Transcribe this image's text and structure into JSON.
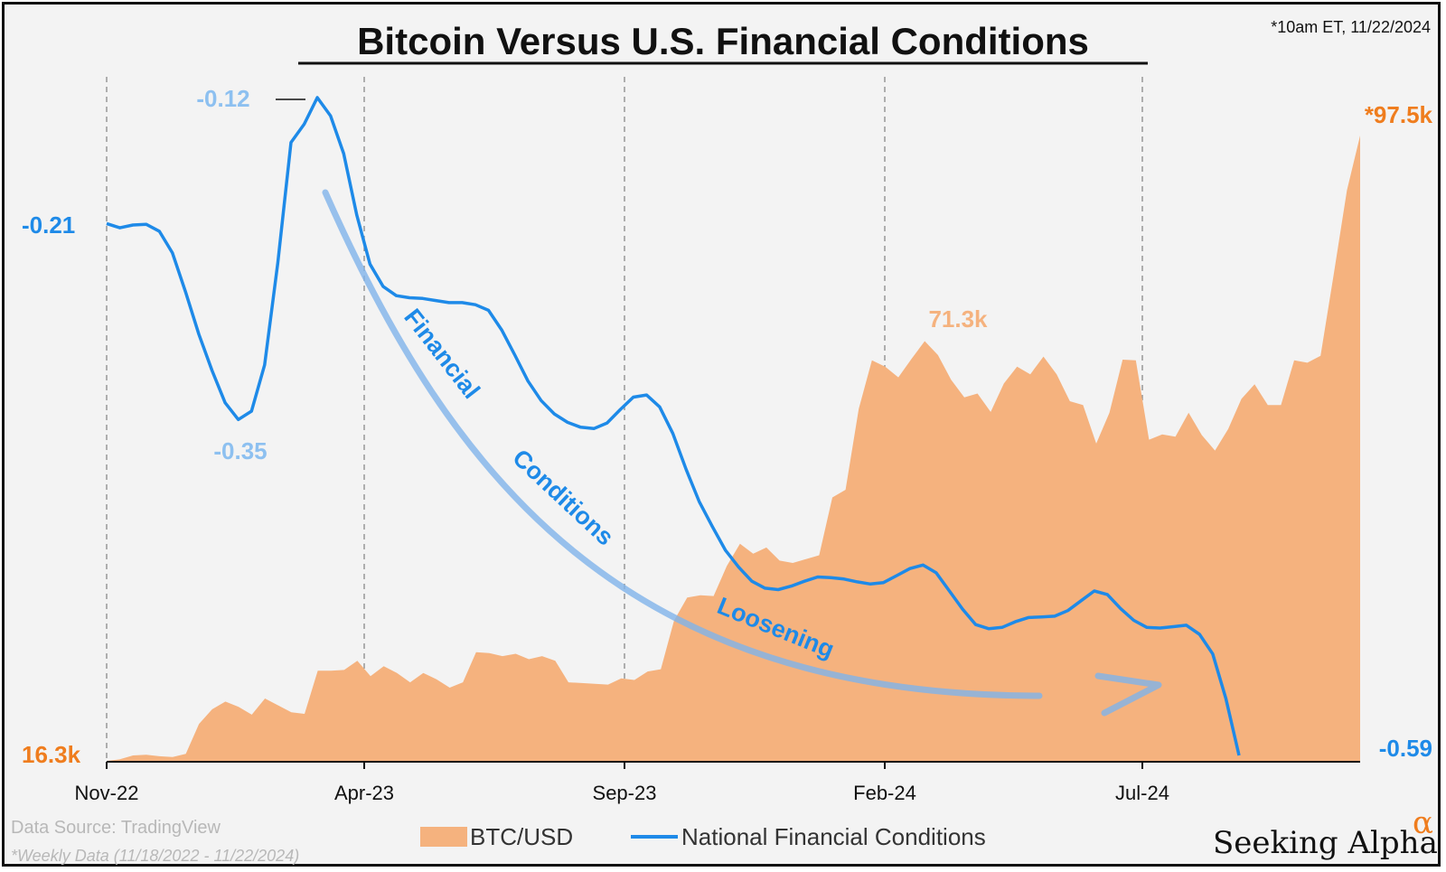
{
  "chart_data": {
    "type": "area+line",
    "title": "Bitcoin Versus U.S. Financial Conditions",
    "timestamp": "*10am ET,  11/22/2024",
    "x_tick_labels": [
      "Nov-22",
      "Apr-23",
      "Sep-23",
      "Feb-24",
      "Jul-24"
    ],
    "series": [
      {
        "name": "BTC/USD",
        "kind": "area",
        "color": "#f5b27e",
        "unit": "k",
        "ylim": [
          16.3,
          97.5
        ],
        "values": [
          16.3,
          16.5,
          17.0,
          17.1,
          16.9,
          16.8,
          17.2,
          21.1,
          23.0,
          24.0,
          23.3,
          22.3,
          24.4,
          23.5,
          22.6,
          22.4,
          28.0,
          28.0,
          28.1,
          29.3,
          27.3,
          28.6,
          27.7,
          26.5,
          27.7,
          26.9,
          25.8,
          26.5,
          30.4,
          30.3,
          29.9,
          30.2,
          29.5,
          29.9,
          29.3,
          26.5,
          26.4,
          26.3,
          26.2,
          27.0,
          26.8,
          27.9,
          28.2,
          34.5,
          37.5,
          37.8,
          37.7,
          41.6,
          44.5,
          43.2,
          44.0,
          42.3,
          42.0,
          42.5,
          43.0,
          50.5,
          51.5,
          62.0,
          68.3,
          67.5,
          66.1,
          68.5,
          70.8,
          69.0,
          65.8,
          63.5,
          64.0,
          61.6,
          65.3,
          67.5,
          66.5,
          68.8,
          66.5,
          63.0,
          62.5,
          57.5,
          61.5,
          68.4,
          68.3,
          58.0,
          58.7,
          58.4,
          61.5,
          58.6,
          56.6,
          59.4,
          63.3,
          65.2,
          62.5,
          62.5,
          68.3,
          68.0,
          68.9,
          79.5,
          90.4,
          97.5
        ]
      },
      {
        "name": "National Financial Conditions",
        "kind": "line",
        "color": "#1e8ae8",
        "ylim": [
          -0.59,
          -0.12
        ],
        "values": [
          -0.21,
          -0.213,
          -0.211,
          -0.2105,
          -0.2155,
          -0.231,
          -0.259,
          -0.289,
          -0.315,
          -0.338,
          -0.35,
          -0.344,
          -0.311,
          -0.238,
          -0.152,
          -0.139,
          -0.12,
          -0.133,
          -0.16,
          -0.204,
          -0.239,
          -0.255,
          -0.2615,
          -0.263,
          -0.2635,
          -0.265,
          -0.2665,
          -0.2665,
          -0.268,
          -0.272,
          -0.286,
          -0.304,
          -0.3225,
          -0.3365,
          -0.346,
          -0.352,
          -0.3555,
          -0.3565,
          -0.3525,
          -0.343,
          -0.334,
          -0.3325,
          -0.341,
          -0.36,
          -0.3855,
          -0.4085,
          -0.4265,
          -0.4435,
          -0.4555,
          -0.4655,
          -0.4705,
          -0.4715,
          -0.469,
          -0.4655,
          -0.4625,
          -0.463,
          -0.464,
          -0.466,
          -0.4675,
          -0.4665,
          -0.4615,
          -0.4565,
          -0.454,
          -0.4595,
          -0.4725,
          -0.4855,
          -0.4965,
          -0.4995,
          -0.4985,
          -0.4945,
          -0.4915,
          -0.491,
          -0.4905,
          -0.4865,
          -0.4795,
          -0.4725,
          -0.475,
          -0.485,
          -0.4935,
          -0.4985,
          -0.499,
          -0.498,
          -0.497,
          -0.5035,
          -0.5175,
          -0.5495,
          -0.59
        ]
      }
    ],
    "annotations": [
      {
        "text": "*97.5k",
        "color": "#ef7d1e"
      },
      {
        "text": "71.3k",
        "color": "#f5b27e"
      },
      {
        "text": "16.3k",
        "color": "#ef7d1e"
      },
      {
        "text": "-0.12",
        "color": "#8dc0f0"
      },
      {
        "text": "-0.21",
        "color": "#1e8ae8"
      },
      {
        "text": "-0.35",
        "color": "#8dc0f0"
      },
      {
        "text": "-0.59",
        "color": "#1e8ae8"
      }
    ],
    "arrow_labels": [
      "Financial",
      "Conditions",
      "Loosening"
    ],
    "grid": {
      "vertical_dashed": true,
      "horizontal": false
    },
    "legend": {
      "placement": "bottom-center",
      "entries": [
        "BTC/USD",
        "National Financial Conditions"
      ]
    }
  },
  "source_line": "Data Source: TradingView",
  "data_note": "*Weekly Data (11/18/2022 - 11/22/2024)",
  "brand": {
    "name": "Seeking Alpha",
    "mark": "α"
  }
}
